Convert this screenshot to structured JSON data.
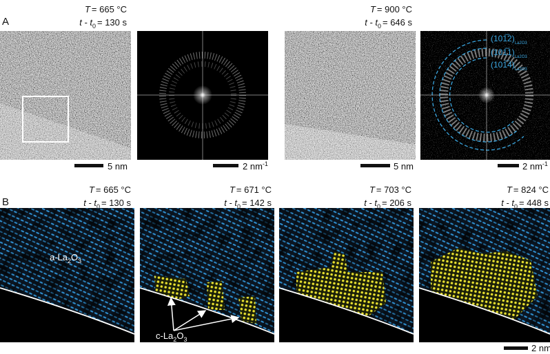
{
  "panel_labels": [
    "A",
    "B"
  ],
  "row_a": {
    "annotations": [
      {
        "T_symbol": "T",
        "temperature": "= 665 °C",
        "t_symbol": "t - t",
        "t_sub": "0",
        "time": "= 130 s"
      },
      {
        "T_symbol": "T",
        "temperature": "= 900 °C",
        "t_symbol": "t - t",
        "t_sub": "0",
        "time": "= 646 s"
      }
    ],
    "scale_bars": [
      {
        "text": "5 nm"
      },
      {
        "text": "2 nm",
        "sup": "-1"
      },
      {
        "text": "5 nm"
      },
      {
        "text": "2 nm",
        "sup": "-1"
      }
    ],
    "fft_labels": [
      {
        "index": "(101̅2)",
        "sub": "La2O3"
      },
      {
        "index": "(101̅1)",
        "sub": "La2O3"
      },
      {
        "index": "(101̅4)",
        "sub": "La2O3"
      }
    ]
  },
  "row_b": {
    "annotations": [
      {
        "T_symbol": "T",
        "temperature": "= 665 °C",
        "t_symbol": "t - t",
        "t_sub": "0",
        "time": "= 130 s"
      },
      {
        "T_symbol": "T",
        "temperature": "= 671 °C",
        "t_symbol": "t - t",
        "t_sub": "0",
        "time": "= 142 s"
      },
      {
        "T_symbol": "T",
        "temperature": "= 703 °C",
        "t_symbol": "t - t",
        "t_sub": "0",
        "time": "= 206 s"
      },
      {
        "T_symbol": "T",
        "temperature": "= 824 °C",
        "t_symbol": "t - t",
        "t_sub": "0",
        "time": "= 448 s"
      }
    ],
    "amorphous_label": [
      {
        "text": "a-La"
      },
      {
        "sub": "2"
      },
      {
        "text": "O"
      },
      {
        "sub": "3"
      }
    ],
    "crystalline_label": [
      {
        "text": "c-La"
      },
      {
        "sub": "2"
      },
      {
        "text": "O"
      },
      {
        "sub": "3"
      }
    ],
    "scale_bar": "2 nm"
  }
}
